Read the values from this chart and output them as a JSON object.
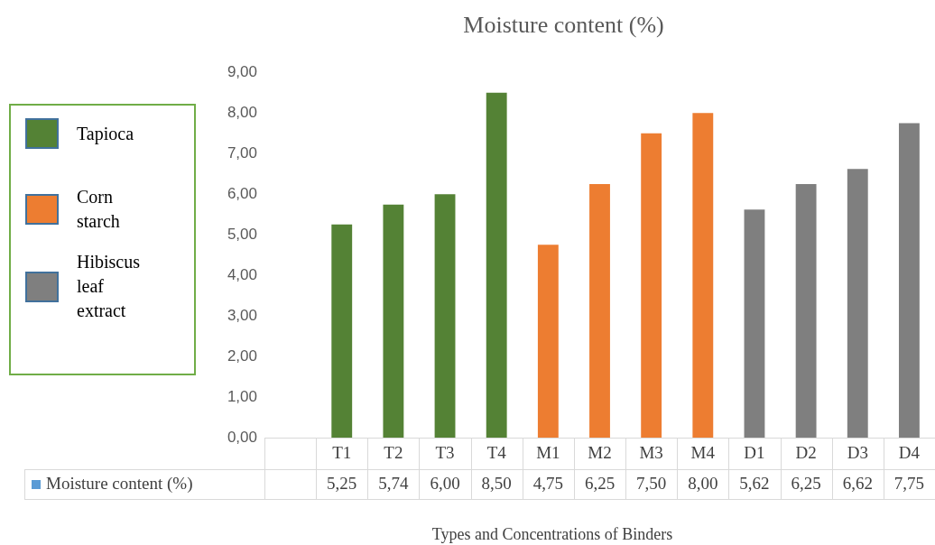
{
  "chart_data": {
    "type": "bar",
    "title": "Moisture content (%)",
    "xlabel": "Types and Concentrations of Binders",
    "categories": [
      null,
      "T1",
      "T2",
      "T3",
      "T4",
      "M1",
      "M2",
      "M3",
      "M4",
      "D1",
      "D2",
      "D3",
      "D4"
    ],
    "stacked": true,
    "legend": "left",
    "grid": false,
    "series": [
      {
        "name": "Tapioca",
        "color": "#548235",
        "values": [
          null,
          5.25,
          5.74,
          6.0,
          8.5,
          null,
          null,
          null,
          null,
          null,
          null,
          null,
          null
        ],
        "value_labels": [
          null,
          "5,25",
          "5,74",
          "6,00",
          "8,50",
          null,
          null,
          null,
          null,
          null,
          null,
          null,
          null
        ]
      },
      {
        "name": "Corn starch",
        "color": "#ed7d31",
        "values": [
          null,
          null,
          null,
          null,
          null,
          4.75,
          6.25,
          7.5,
          8.0,
          null,
          null,
          null,
          null
        ],
        "value_labels": [
          null,
          null,
          null,
          null,
          null,
          "4,75",
          "6,25",
          "7,50",
          "8,00",
          null,
          null,
          null,
          null
        ]
      },
      {
        "name": "Hibiscus leaf extract",
        "color": "#7f7f7f",
        "values": [
          null,
          null,
          null,
          null,
          null,
          null,
          null,
          null,
          null,
          5.62,
          6.25,
          6.62,
          7.75
        ],
        "value_labels": [
          null,
          null,
          null,
          null,
          null,
          null,
          null,
          null,
          null,
          "5,62",
          "6,25",
          "6,62",
          "7,75"
        ]
      }
    ],
    "ylim": [
      0,
      9
    ],
    "yticks": [
      {
        "value": 0,
        "label": "0,00"
      },
      {
        "value": 1,
        "label": "1,00"
      },
      {
        "value": 2,
        "label": "2,00"
      },
      {
        "value": 3,
        "label": "3,00"
      },
      {
        "value": 4,
        "label": "4,00"
      },
      {
        "value": 5,
        "label": "5,00"
      },
      {
        "value": 6,
        "label": "6,00"
      },
      {
        "value": 7,
        "label": "7,00"
      },
      {
        "value": 8,
        "label": "8,00"
      },
      {
        "value": 9,
        "label": "9,00"
      }
    ],
    "annotations": [
      "Moisture content (%)"
    ]
  }
}
